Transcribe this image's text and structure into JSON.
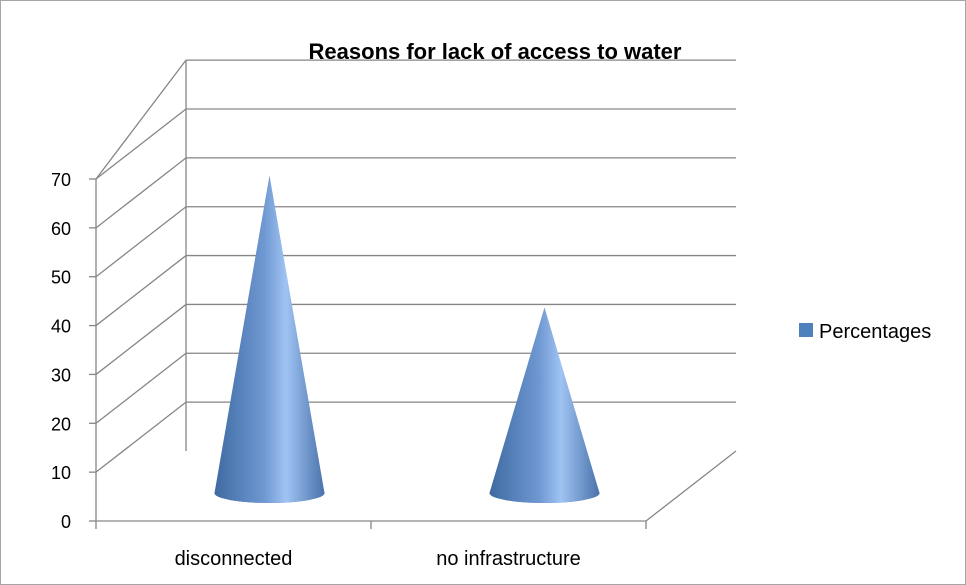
{
  "chart_data": {
    "type": "bar",
    "style": "3d-cone",
    "title": "Reasons for lack of  access to water",
    "xlabel": "",
    "ylabel": "",
    "categories": [
      "disconnected",
      "no infrastructure"
    ],
    "series": [
      {
        "name": "Percentages",
        "values": [
          65,
          38
        ],
        "color": "#4f81bd"
      }
    ],
    "ylim": [
      0,
      70
    ],
    "y_ticks": [
      "0",
      "10",
      "20",
      "30",
      "40",
      "50",
      "60",
      "70"
    ],
    "grid": true,
    "legend_position": "right"
  }
}
